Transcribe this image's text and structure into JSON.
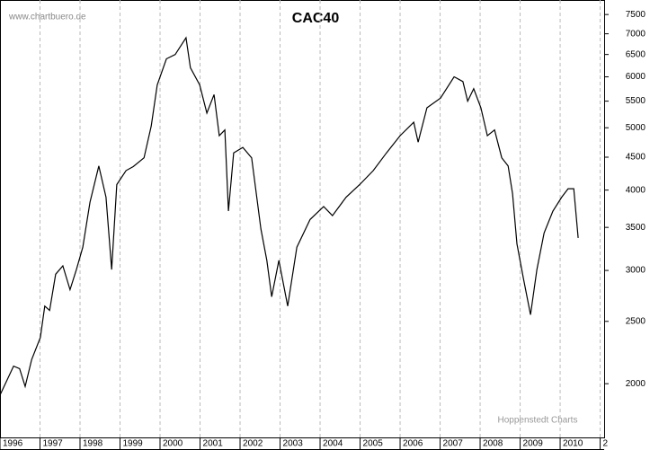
{
  "chart_data": {
    "type": "line",
    "title": "CAC40",
    "source": "www.chartbuero.de",
    "credit": "Hoppenstedt Charts",
    "log_y": true,
    "grid_x": true,
    "color": "#000000",
    "xlim": [
      1996,
      2011.1
    ],
    "xticks": [
      1996,
      1997,
      1998,
      1999,
      2000,
      2001,
      2002,
      2003,
      2004,
      2005,
      2006,
      2007,
      2008,
      2009,
      2010,
      {
        "value": 2011,
        "label": "2"
      }
    ],
    "ylim": [
      1650,
      7900
    ],
    "yticks": [
      2000,
      2500,
      3000,
      3500,
      4000,
      4500,
      5000,
      5500,
      6000,
      6500,
      7000,
      7500
    ],
    "x": [
      1996.0,
      1996.34,
      1996.49,
      1996.63,
      1996.79,
      1997.01,
      1997.12,
      1997.24,
      1997.39,
      1997.57,
      1997.75,
      1997.91,
      1998.07,
      1998.25,
      1998.47,
      1998.65,
      1998.79,
      1998.92,
      1999.15,
      1999.33,
      1999.6,
      1999.78,
      1999.93,
      2000.16,
      2000.38,
      2000.65,
      2000.76,
      2000.99,
      2001.17,
      2001.35,
      2001.48,
      2001.62,
      2001.71,
      2001.84,
      2002.07,
      2002.29,
      2002.52,
      2002.67,
      2002.79,
      2002.97,
      2003.19,
      2003.42,
      2003.75,
      2004.09,
      2004.31,
      2004.65,
      2004.99,
      2005.33,
      2005.66,
      2006.0,
      2006.34,
      2006.45,
      2006.67,
      2007.01,
      2007.35,
      2007.57,
      2007.69,
      2007.84,
      2008.02,
      2008.18,
      2008.36,
      2008.54,
      2008.7,
      2008.81,
      2008.92,
      2009.08,
      2009.26,
      2009.42,
      2009.6,
      2009.82,
      2010.04,
      2010.2,
      2010.34,
      2010.45
    ],
    "values": [
      1920,
      2130,
      2110,
      1980,
      2180,
      2360,
      2640,
      2600,
      2960,
      3050,
      2800,
      3010,
      3260,
      3830,
      4360,
      3900,
      3010,
      4080,
      4290,
      4350,
      4490,
      5030,
      5830,
      6400,
      6500,
      6900,
      6200,
      5830,
      5270,
      5630,
      4860,
      4960,
      3710,
      4570,
      4660,
      4490,
      3480,
      3110,
      2730,
      3110,
      2640,
      3260,
      3600,
      3770,
      3650,
      3900,
      4080,
      4290,
      4570,
      4860,
      5100,
      4750,
      5370,
      5560,
      6000,
      5900,
      5500,
      5750,
      5370,
      4860,
      4960,
      4490,
      4360,
      3950,
      3300,
      2920,
      2560,
      3010,
      3430,
      3710,
      3900,
      4020,
      4020,
      3370
    ]
  }
}
